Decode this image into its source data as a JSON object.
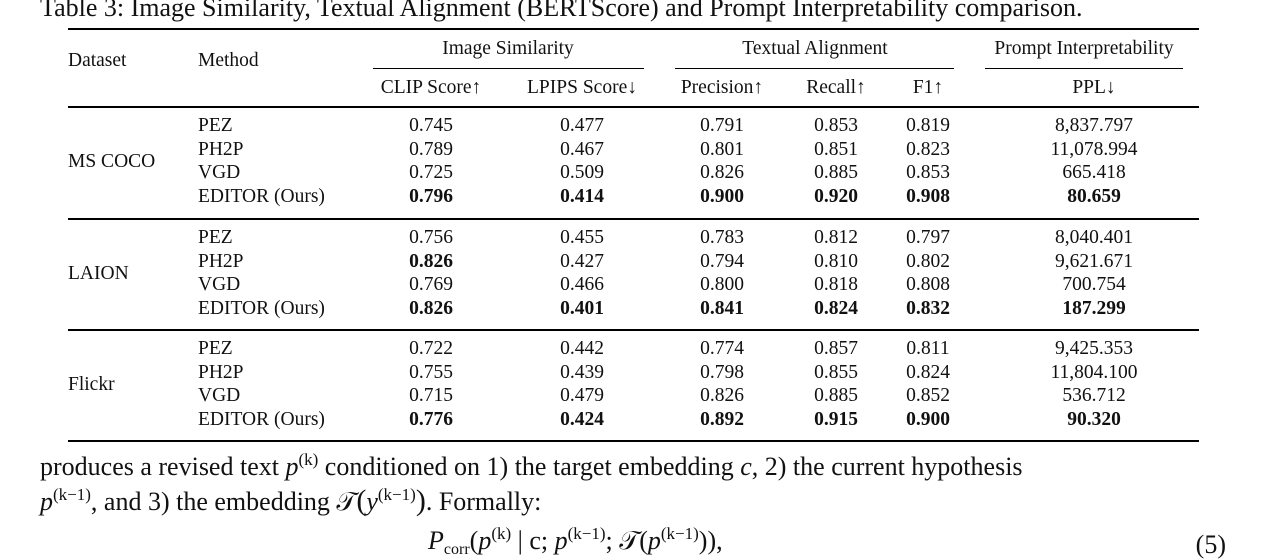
{
  "caption": "Table 3: Image Similarity, Textual Alignment (BERTScore) and Prompt Interpretability comparison.",
  "header": {
    "dataset": "Dataset",
    "method": "Method",
    "group_image": "Image Similarity",
    "group_text": "Textual Alignment",
    "group_prompt": "Prompt Interpretability",
    "clip": "CLIP Score↑",
    "lpips": "LPIPS Score↓",
    "precision": "Precision↑",
    "recall": "Recall↑",
    "f1": "F1↑",
    "ppl": "PPL↓"
  },
  "datasets": [
    {
      "name": "MS COCO",
      "rows": [
        {
          "method": "PEZ",
          "clip": "0.745",
          "lpips": "0.477",
          "precision": "0.791",
          "recall": "0.853",
          "f1": "0.819",
          "ppl": "8,837.797"
        },
        {
          "method": "PH2P",
          "clip": "0.789",
          "lpips": "0.467",
          "precision": "0.801",
          "recall": "0.851",
          "f1": "0.823",
          "ppl": "11,078.994"
        },
        {
          "method": "VGD",
          "clip": "0.725",
          "lpips": "0.509",
          "precision": "0.826",
          "recall": "0.885",
          "f1": "0.853",
          "ppl": "665.418"
        },
        {
          "method": "EDITOR (Ours)",
          "clip": "0.796",
          "lpips": "0.414",
          "precision": "0.900",
          "recall": "0.920",
          "f1": "0.908",
          "ppl": "80.659"
        }
      ],
      "bold": [
        [],
        [],
        [],
        [
          "clip",
          "lpips",
          "precision",
          "recall",
          "f1",
          "ppl"
        ]
      ]
    },
    {
      "name": "LAION",
      "rows": [
        {
          "method": "PEZ",
          "clip": "0.756",
          "lpips": "0.455",
          "precision": "0.783",
          "recall": "0.812",
          "f1": "0.797",
          "ppl": "8,040.401"
        },
        {
          "method": "PH2P",
          "clip": "0.826",
          "lpips": "0.427",
          "precision": "0.794",
          "recall": "0.810",
          "f1": "0.802",
          "ppl": "9,621.671"
        },
        {
          "method": "VGD",
          "clip": "0.769",
          "lpips": "0.466",
          "precision": "0.800",
          "recall": "0.818",
          "f1": "0.808",
          "ppl": "700.754"
        },
        {
          "method": "EDITOR (Ours)",
          "clip": "0.826",
          "lpips": "0.401",
          "precision": "0.841",
          "recall": "0.824",
          "f1": "0.832",
          "ppl": "187.299"
        }
      ],
      "bold": [
        [],
        [
          "clip"
        ],
        [],
        [
          "clip",
          "lpips",
          "precision",
          "recall",
          "f1",
          "ppl"
        ]
      ]
    },
    {
      "name": "Flickr",
      "rows": [
        {
          "method": "PEZ",
          "clip": "0.722",
          "lpips": "0.442",
          "precision": "0.774",
          "recall": "0.857",
          "f1": "0.811",
          "ppl": "9,425.353"
        },
        {
          "method": "PH2P",
          "clip": "0.755",
          "lpips": "0.439",
          "precision": "0.798",
          "recall": "0.855",
          "f1": "0.824",
          "ppl": "11,804.100"
        },
        {
          "method": "VGD",
          "clip": "0.715",
          "lpips": "0.479",
          "precision": "0.826",
          "recall": "0.885",
          "f1": "0.852",
          "ppl": "536.712"
        },
        {
          "method": "EDITOR (Ours)",
          "clip": "0.776",
          "lpips": "0.424",
          "precision": "0.892",
          "recall": "0.915",
          "f1": "0.900",
          "ppl": "90.320"
        }
      ],
      "bold": [
        [],
        [],
        [],
        [
          "clip",
          "lpips",
          "precision",
          "recall",
          "f1",
          "ppl"
        ]
      ]
    }
  ],
  "paragraph": {
    "line1_a": "produces a revised text ",
    "line1_b": " conditioned on 1) the target embedding ",
    "line1_c": ", 2) the current hypothesis",
    "line2_b": ", and 3) the embedding ",
    "line2_c": ". Formally:",
    "var_p": "p",
    "sup_k": "(k)",
    "sup_k1": "(k−1)",
    "var_c": "c",
    "var_T": "𝒯",
    "var_y": "y",
    "eq_P": "P",
    "eq_sub": "corr",
    "eq_mid": " | c; ",
    "eq_number": "(5)"
  }
}
